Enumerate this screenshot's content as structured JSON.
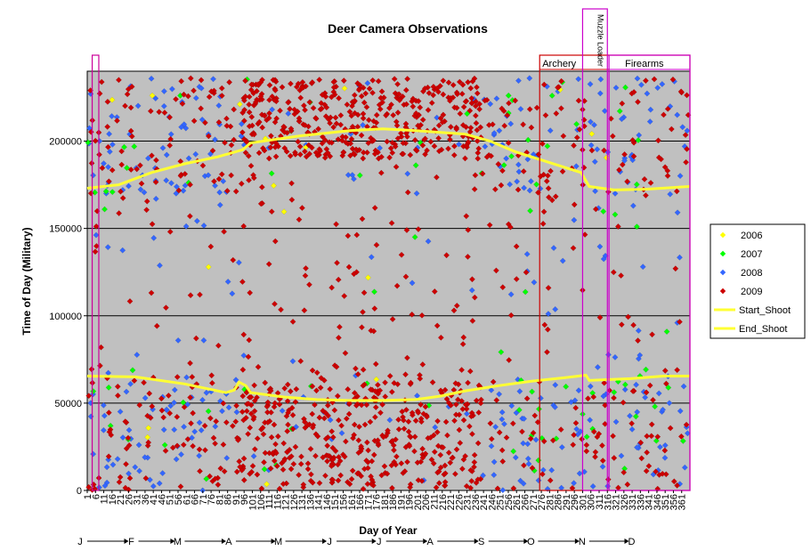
{
  "chart_data": {
    "type": "scatter",
    "title": "Deer Camera Observations",
    "xlabel": "Day of Year",
    "ylabel": "Time of Day (Military)",
    "xlim": [
      1,
      366
    ],
    "ylim": [
      0,
      240000
    ],
    "y_ticks": [
      "0",
      "50000",
      "100000",
      "150000",
      "200000"
    ],
    "x_ticks": [
      "1",
      "6",
      "11",
      "16",
      "21",
      "26",
      "31",
      "36",
      "41",
      "46",
      "51",
      "56",
      "61",
      "66",
      "71",
      "76",
      "81",
      "86",
      "91",
      "96",
      "101",
      "106",
      "111",
      "116",
      "121",
      "126",
      "131",
      "136",
      "141",
      "146",
      "151",
      "156",
      "161",
      "166",
      "171",
      "176",
      "181",
      "186",
      "191",
      "196",
      "201",
      "206",
      "211",
      "216",
      "221",
      "226",
      "231",
      "236",
      "241",
      "246",
      "251",
      "256",
      "261",
      "266",
      "271",
      "276",
      "281",
      "286",
      "291",
      "296",
      "301",
      "306",
      "311",
      "316",
      "321",
      "326",
      "331",
      "336",
      "341",
      "346",
      "351",
      "356",
      "361"
    ],
    "months": [
      {
        "label": "J",
        "day": 1
      },
      {
        "label": "F",
        "day": 32
      },
      {
        "label": "M",
        "day": 60
      },
      {
        "label": "A",
        "day": 91
      },
      {
        "label": "M",
        "day": 121
      },
      {
        "label": "J",
        "day": 152
      },
      {
        "label": "J",
        "day": 182
      },
      {
        "label": "A",
        "day": 213
      },
      {
        "label": "S",
        "day": 244
      },
      {
        "label": "O",
        "day": 274
      },
      {
        "label": "N",
        "day": 305
      },
      {
        "label": "D",
        "day": 335
      }
    ],
    "grid": true,
    "legend_position": "right",
    "plot_background": "#C0C0C0",
    "legend": [
      {
        "label": "2006",
        "color": "#FFFF00",
        "kind": "marker"
      },
      {
        "label": "2007",
        "color": "#00FF00",
        "kind": "marker"
      },
      {
        "label": "2008",
        "color": "#3366FF",
        "kind": "marker"
      },
      {
        "label": "2009",
        "color": "#CC0000",
        "kind": "marker"
      },
      {
        "label": "Start_Shoot",
        "color": "#FFFF33",
        "kind": "line"
      },
      {
        "label": "End_Shoot",
        "color": "#FFFF33",
        "kind": "line"
      }
    ],
    "seasons": [
      {
        "label": "Archery",
        "start_day": 275,
        "end_day": 366,
        "color": "#CC0000",
        "vertical": false
      },
      {
        "label": "Muzzle Loader",
        "start_day": 301,
        "end_day": 316,
        "color": "#CC00CC",
        "vertical": true
      },
      {
        "label": "Firearms",
        "start_day": 317,
        "end_day": 366,
        "color": "#CC00CC",
        "vertical": false
      },
      {
        "label": "",
        "start_day": 4,
        "end_day": 8,
        "color": "#CC0099",
        "vertical": false
      }
    ],
    "series": [
      {
        "name": "Start_Shoot",
        "type": "line",
        "points": [
          [
            1,
            65500
          ],
          [
            30,
            65000
          ],
          [
            60,
            61000
          ],
          [
            75,
            58000
          ],
          [
            85,
            56000
          ],
          [
            90,
            57500
          ],
          [
            93,
            62000
          ],
          [
            97,
            60000
          ],
          [
            100,
            56000
          ],
          [
            120,
            53500
          ],
          [
            140,
            52000
          ],
          [
            160,
            51500
          ],
          [
            180,
            51500
          ],
          [
            200,
            52000
          ],
          [
            215,
            54000
          ],
          [
            230,
            57000
          ],
          [
            250,
            60000
          ],
          [
            270,
            62500
          ],
          [
            290,
            64500
          ],
          [
            303,
            66000
          ],
          [
            305,
            63000
          ],
          [
            330,
            64000
          ],
          [
            350,
            65500
          ],
          [
            366,
            65500
          ]
        ]
      },
      {
        "name": "End_Shoot",
        "type": "line",
        "points": [
          [
            1,
            173000
          ],
          [
            20,
            175000
          ],
          [
            40,
            182000
          ],
          [
            60,
            187000
          ],
          [
            80,
            191000
          ],
          [
            95,
            195000
          ],
          [
            100,
            199000
          ],
          [
            130,
            203000
          ],
          [
            160,
            206000
          ],
          [
            180,
            207000
          ],
          [
            200,
            206000
          ],
          [
            215,
            205000
          ],
          [
            230,
            204000
          ],
          [
            245,
            200000
          ],
          [
            260,
            194000
          ],
          [
            280,
            188000
          ],
          [
            300,
            182000
          ],
          [
            305,
            174000
          ],
          [
            320,
            172000
          ],
          [
            340,
            172500
          ],
          [
            366,
            174000
          ]
        ]
      }
    ]
  }
}
